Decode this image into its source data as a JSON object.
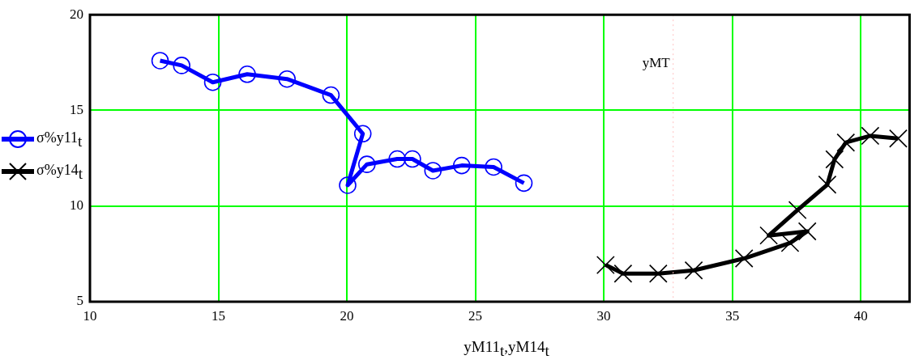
{
  "chart_data": {
    "type": "line",
    "xlabel": "yM11$_{t}$,yM14$_{t}$",
    "xlim": [
      10,
      41.9
    ],
    "xticks": [
      10,
      15,
      20,
      25,
      30,
      35,
      40
    ],
    "ylim": [
      5,
      20
    ],
    "yticks": [
      5,
      10,
      15,
      20
    ],
    "grid": true,
    "legend": "left",
    "ref_lines": [
      {
        "axis": "x",
        "value": 32.7,
        "label": "yMT",
        "color": "#ffc0c0",
        "line_style": "dotted"
      }
    ],
    "series": [
      {
        "name": "σ%y11$_{t}$",
        "color": "#0000ff",
        "marker": "circle",
        "line_style": "solid",
        "x": [
          12.73,
          13.57,
          14.78,
          16.12,
          17.67,
          19.38,
          20.62,
          20.03,
          20.78,
          21.96,
          22.55,
          23.35,
          24.47,
          25.71,
          26.89
        ],
        "values": [
          17.6,
          17.35,
          16.47,
          16.89,
          16.64,
          15.8,
          13.78,
          11.09,
          12.18,
          12.46,
          12.46,
          11.85,
          12.12,
          12.04,
          11.2
        ]
      },
      {
        "name": "σ%y14$_{t}$",
        "color": "#000000",
        "marker": "cross",
        "line_style": "solid",
        "x": [
          30.07,
          30.75,
          32.12,
          33.5,
          35.46,
          37.25,
          37.92,
          36.42,
          37.54,
          38.7,
          38.98,
          39.42,
          40.37,
          41.46
        ],
        "values": [
          6.92,
          6.47,
          6.47,
          6.64,
          7.26,
          8.07,
          8.68,
          8.46,
          9.79,
          11.12,
          12.44,
          13.32,
          13.67,
          13.53
        ]
      }
    ]
  }
}
